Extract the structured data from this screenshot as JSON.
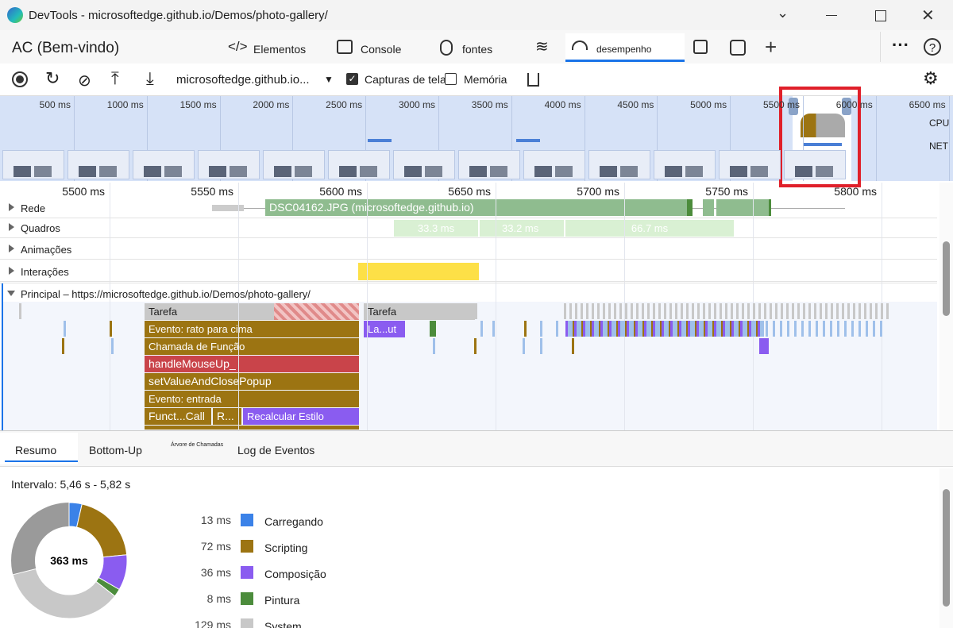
{
  "window": {
    "title": "DevTools - microsoftedge.github.io/Demos/photo-gallery/"
  },
  "tabs": [
    "AC (Bem-vindo)",
    "Elementos",
    "Console",
    "fontes",
    "desempenho"
  ],
  "toolbar": {
    "url": "microsoftedge.github.io...",
    "screenshots": "Capturas de tela",
    "memory": "Memória"
  },
  "overview": {
    "ticks": [
      "500 ms",
      "1000 ms",
      "1500 ms",
      "2000 ms",
      "2500 ms",
      "3000 ms",
      "3500 ms",
      "4000 ms",
      "4500 ms",
      "5000 ms",
      "5500 ms",
      "6000 ms",
      "6500 ms"
    ],
    "cpu": "CPU",
    "net": "NET"
  },
  "timeline": {
    "ticks": [
      "5500 ms",
      "5550 ms",
      "5600 ms",
      "5650 ms",
      "5700 ms",
      "5750 ms",
      "5800 ms"
    ],
    "tracks": [
      "Rede",
      "Quadros",
      "Animações",
      "Interações",
      "Principal – https://microsoftedge.github.io/Demos/photo-gallery/"
    ],
    "network_request": "DSC04162.JPG (microsoftedge.github.io)",
    "frames": [
      "33.3 ms",
      "33.2 ms",
      "66.7 ms"
    ],
    "flame": [
      "Tarefa",
      "Tarefa",
      "Evento: rato para cima",
      "La...ut",
      "Chamada de Função",
      "handleMouseUp_",
      "setValueAndClosePopup",
      "Evento: entrada",
      "Funct...Call",
      "R...",
      "Recalcular Estilo"
    ]
  },
  "bottom_tabs": [
    "Resumo",
    "Bottom-Up",
    "Árvore de Chamadas",
    "Log de Eventos"
  ],
  "summary": {
    "range": "Intervalo: 5,46 s - 5,82 s",
    "total": {
      "value": 363,
      "label": "363 ms"
    },
    "items": [
      {
        "value": 13,
        "label": "13 ms",
        "name": "Carregando",
        "color": "#3b82e8"
      },
      {
        "value": 72,
        "label": "72 ms",
        "name": "Scripting",
        "color": "#9c7412"
      },
      {
        "value": 36,
        "label": "36 ms",
        "name": "Composição",
        "color": "#8a5cf0"
      },
      {
        "value": 8,
        "label": "8 ms",
        "name": "Pintura",
        "color": "#4c8c3c"
      },
      {
        "value": 129,
        "label": "129 ms",
        "name": "System",
        "color": "#c8c8c8"
      }
    ]
  }
}
